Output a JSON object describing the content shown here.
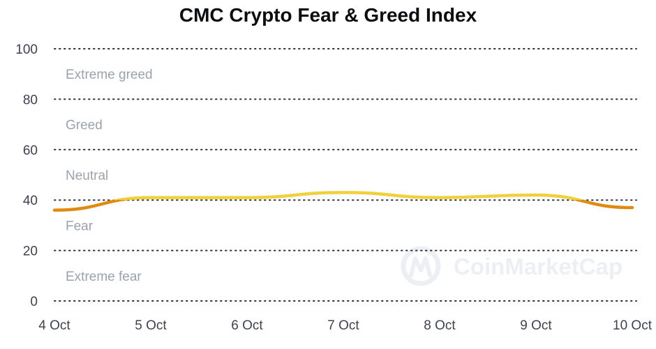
{
  "chart_data": {
    "type": "line",
    "title": "CMC Crypto Fear & Greed Index",
    "xlabel": "",
    "ylabel": "",
    "x": [
      "4 Oct",
      "5 Oct",
      "6 Oct",
      "7 Oct",
      "8 Oct",
      "9 Oct",
      "10 Oct"
    ],
    "series": [
      {
        "values": [
          36,
          41,
          41,
          43,
          41,
          42,
          37
        ]
      }
    ],
    "ylim": [
      0,
      100
    ],
    "yticks": [
      0,
      20,
      40,
      60,
      80,
      100
    ],
    "grid": "horizontal dotted",
    "zones": [
      {
        "label": "Extreme greed",
        "from": 80,
        "to": 100
      },
      {
        "label": "Greed",
        "from": 60,
        "to": 80
      },
      {
        "label": "Neutral",
        "from": 40,
        "to": 60
      },
      {
        "label": "Fear",
        "from": 20,
        "to": 40
      },
      {
        "label": "Extreme fear",
        "from": 0,
        "to": 20
      }
    ],
    "line_colors": {
      "below_40": "#e08a10",
      "above_40": "#f0d03c"
    }
  },
  "watermark": "CoinMarketCap"
}
